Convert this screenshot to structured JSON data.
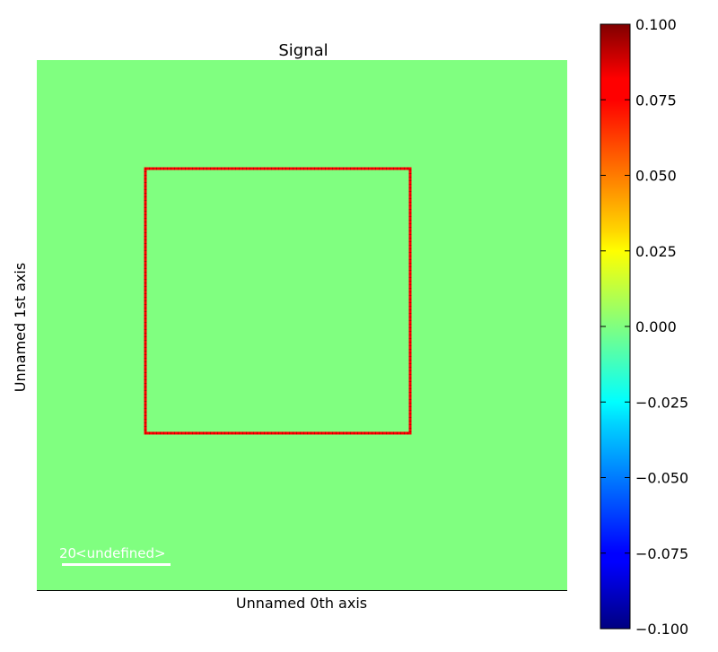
{
  "chart_data": {
    "type": "heatmap",
    "title": "Signal",
    "xlabel": "Unnamed 0th axis",
    "ylabel": "Unnamed 1st axis",
    "grid": false,
    "image_value": 0.0,
    "colormap": "jet",
    "colorbar": {
      "range": [
        -0.1,
        0.1
      ],
      "ticks": [
        0.1,
        0.075,
        0.05,
        0.025,
        0.0,
        -0.025,
        -0.05,
        -0.075,
        -0.1
      ],
      "tick_labels": [
        "0.100",
        "0.075",
        "0.050",
        "0.025",
        "0.000",
        "−0.025",
        "−0.050",
        "−0.075",
        "−0.100"
      ]
    },
    "scalebar": {
      "value_label": "20",
      "unit_label": "<undefined>"
    },
    "roi": {
      "shape": "rectangle",
      "color": "#ff0000"
    }
  },
  "colors": {
    "image_fill": "#80ff80",
    "roi": "#ff0000",
    "scalebar": "#ffffff"
  }
}
